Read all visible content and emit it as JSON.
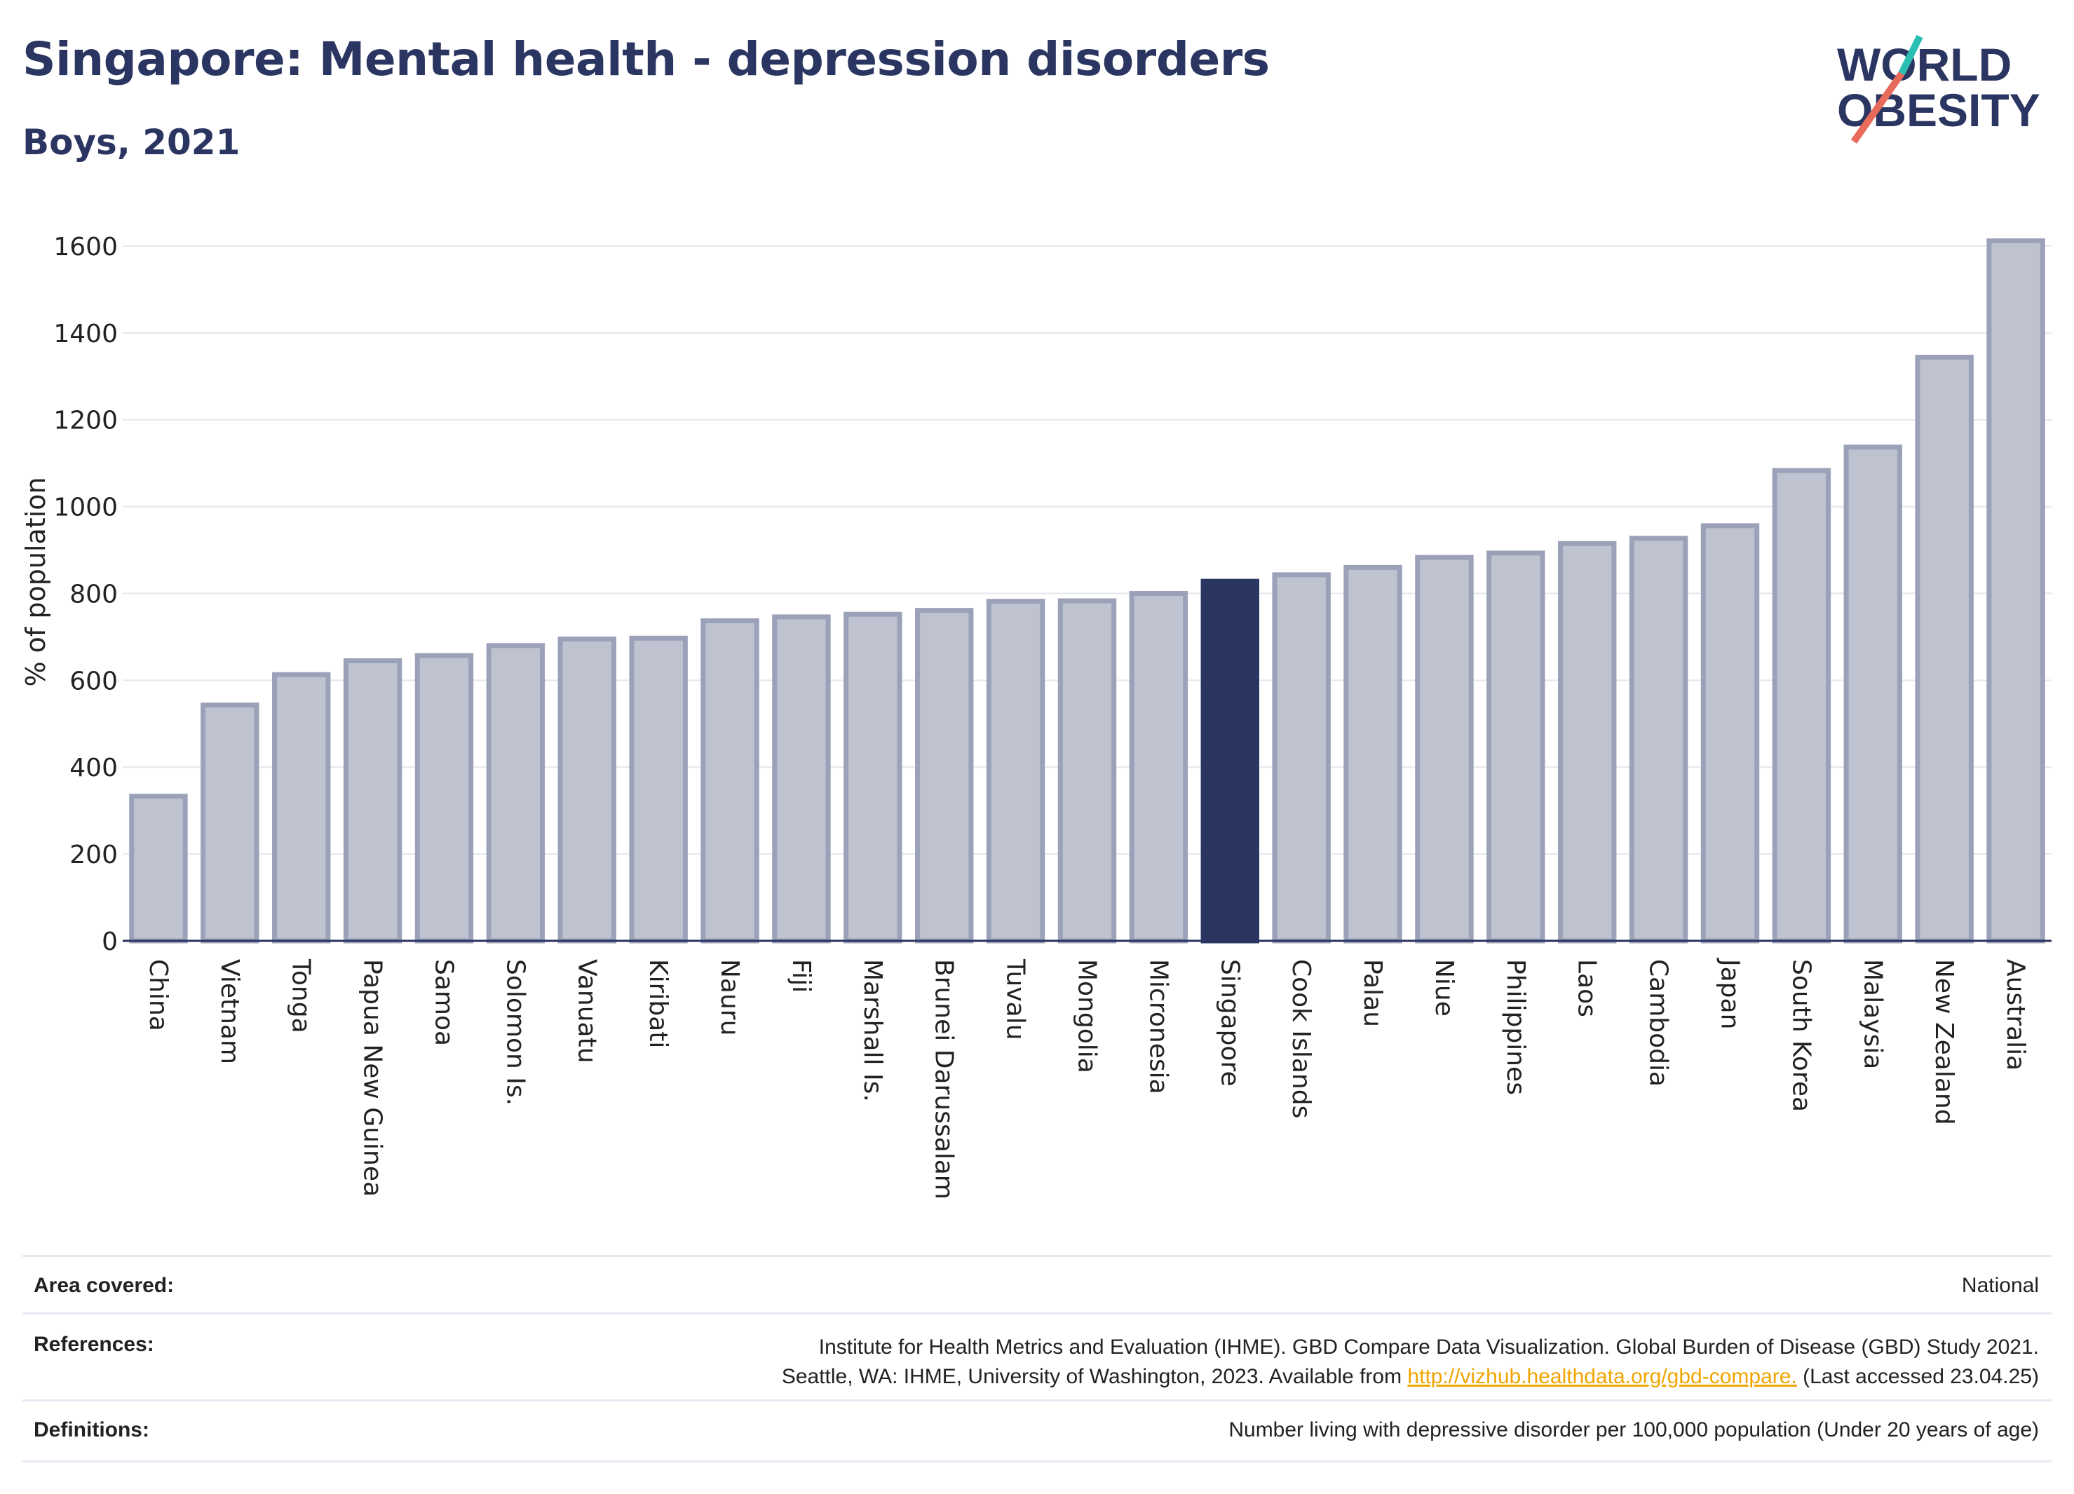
{
  "header": {
    "title": "Singapore: Mental health - depression disorders",
    "subtitle": "Boys, 2021"
  },
  "logo": {
    "line1": "WORLD",
    "line2": "OBESITY"
  },
  "colors": {
    "bar": "#bfc3d0",
    "bar_border": "#9ba1b8",
    "highlight": "#2b3561",
    "grid": "#e6e7ee",
    "text": "#2b3561"
  },
  "chart_data": {
    "type": "bar",
    "ylabel": "% of population",
    "ylim": [
      0,
      1650
    ],
    "yticks": [
      0,
      200,
      400,
      600,
      800,
      1000,
      1200,
      1400,
      1600
    ],
    "highlight": "Singapore",
    "categories": [
      "China",
      "Vietnam",
      "Tonga",
      "Papua New Guinea",
      "Samoa",
      "Solomon Is.",
      "Vanuatu",
      "Kiribati",
      "Nauru",
      "Fiji",
      "Marshall Is.",
      "Brunei Darussalam",
      "Tuvalu",
      "Mongolia",
      "Micronesia",
      "Singapore",
      "Cook Islands",
      "Palau",
      "Niue",
      "Philippines",
      "Laos",
      "Cambodia",
      "Japan",
      "South Korea",
      "Malaysia",
      "New Zealand",
      "Australia"
    ],
    "values": [
      333,
      543,
      613,
      645,
      657,
      680,
      695,
      697,
      737,
      746,
      752,
      761,
      782,
      783,
      800,
      828,
      843,
      860,
      883,
      893,
      915,
      927,
      956,
      1083,
      1137,
      1344,
      1612
    ]
  },
  "footer": {
    "area_label": "Area covered:",
    "area_value": "National",
    "references_label": "References:",
    "references_line1": "Institute for Health Metrics and Evaluation (IHME). GBD Compare Data Visualization. Global Burden of Disease (GBD) Study 2021.",
    "references_line2_pre": "Seattle, WA: IHME, University of Washington, 2023. Available from ",
    "references_link": "http://vizhub.healthdata.org/gbd-compare.",
    "references_line2_post": " (Last accessed 23.04.25)",
    "definitions_label": "Definitions:",
    "definitions_value": "Number living with depressive disorder per 100,000 population (Under 20 years of age)"
  }
}
